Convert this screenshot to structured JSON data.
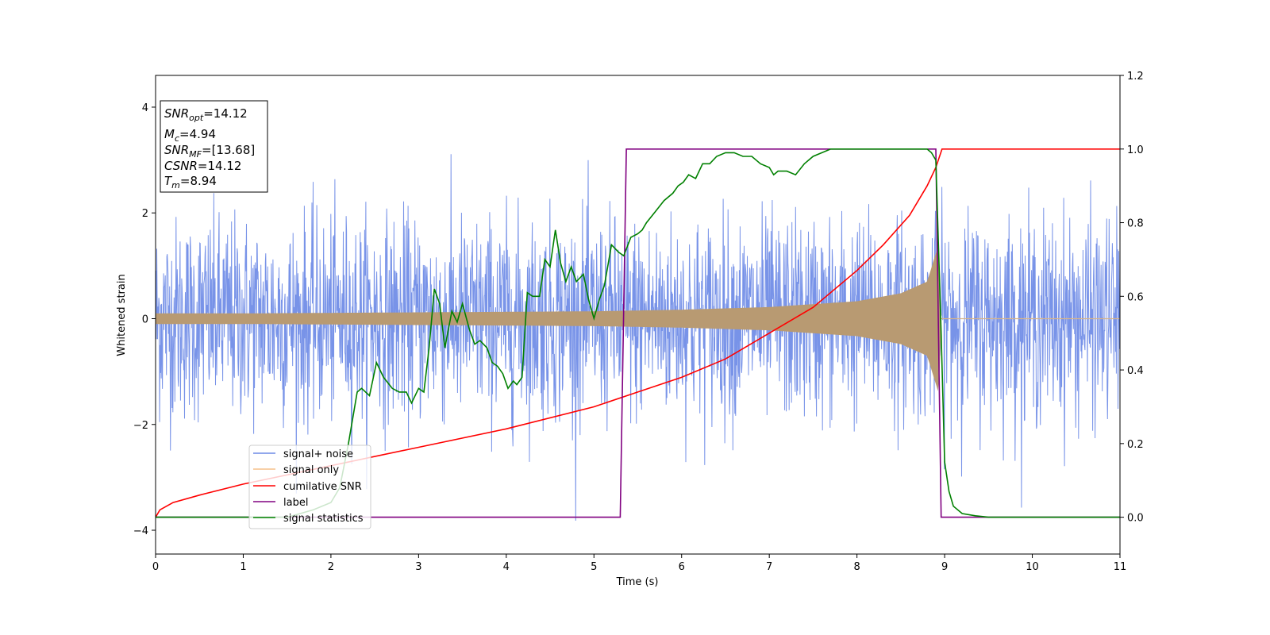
{
  "chart_data": {
    "type": "line",
    "title": "",
    "xlabel": "Time (s)",
    "ylabel": "Whitened strain",
    "xlim": [
      0,
      11
    ],
    "ylim": [
      -4.45,
      4.6
    ],
    "y2lim": [
      -0.1,
      1.2
    ],
    "x_ticks": [
      "0",
      "1",
      "2",
      "3",
      "4",
      "5",
      "6",
      "7",
      "8",
      "9",
      "10",
      "11"
    ],
    "y_ticks": [
      "−4",
      "−2",
      "0",
      "2",
      "4"
    ],
    "y2_ticks": [
      "0.0",
      "0.2",
      "0.4",
      "0.6",
      "0.8",
      "1.0",
      "1.2"
    ],
    "legend_placement": "lower-left",
    "grid": false,
    "annotation": {
      "snr_opt": "=14.12",
      "mc": "=4.94",
      "snr_mf": "=[13.68]",
      "csnr": "=14.12",
      "tm": "=8.94"
    },
    "series": [
      {
        "name": "signal+ noise",
        "axis": "left",
        "color": "#6d8ae6",
        "description_values": {
          "typical_amplitude_sigma": 1.0,
          "max": 4.18,
          "min": -4.07
        }
      },
      {
        "name": "signal only",
        "axis": "left",
        "color": "#f5c08a",
        "envelope": {
          "x": [
            0,
            1,
            2,
            3,
            4,
            5,
            6,
            7,
            8,
            8.5,
            8.8,
            8.94,
            8.95,
            11
          ],
          "amplitude": [
            0.1,
            0.1,
            0.11,
            0.12,
            0.13,
            0.14,
            0.17,
            0.22,
            0.33,
            0.48,
            0.7,
            1.45,
            0.0,
            0.0
          ]
        }
      },
      {
        "name": "cumilative SNR",
        "axis": "right",
        "color": "#ff0000",
        "x": [
          0,
          0.05,
          0.2,
          0.5,
          1,
          2,
          3,
          4,
          5,
          5.5,
          6,
          6.5,
          7,
          7.5,
          8,
          8.3,
          8.6,
          8.8,
          8.9,
          8.97,
          11
        ],
        "values": [
          0.0,
          0.02,
          0.04,
          0.06,
          0.09,
          0.14,
          0.19,
          0.24,
          0.3,
          0.34,
          0.38,
          0.43,
          0.5,
          0.57,
          0.67,
          0.74,
          0.82,
          0.9,
          0.95,
          1.0,
          1.0
        ]
      },
      {
        "name": "label",
        "axis": "right",
        "color": "#800080",
        "x": [
          0,
          5.3,
          5.37,
          8.9,
          8.96,
          11
        ],
        "values": [
          0.0,
          0.0,
          1.0,
          1.0,
          0.0,
          0.0
        ]
      },
      {
        "name": "signal statistics",
        "axis": "right",
        "color": "#008000",
        "x": [
          0,
          0.5,
          1.0,
          1.5,
          1.8,
          2.0,
          2.1,
          2.2,
          2.3,
          2.35,
          2.44,
          2.52,
          2.6,
          2.7,
          2.78,
          2.86,
          2.92,
          3.0,
          3.06,
          3.12,
          3.18,
          3.24,
          3.3,
          3.38,
          3.44,
          3.5,
          3.58,
          3.64,
          3.7,
          3.78,
          3.84,
          3.9,
          3.96,
          4.02,
          4.08,
          4.12,
          4.18,
          4.24,
          4.3,
          4.38,
          4.44,
          4.5,
          4.56,
          4.62,
          4.68,
          4.74,
          4.8,
          4.88,
          4.94,
          5.0,
          5.06,
          5.12,
          5.2,
          5.28,
          5.34,
          5.42,
          5.5,
          5.55,
          5.6,
          5.7,
          5.8,
          5.9,
          5.96,
          6.02,
          6.08,
          6.16,
          6.24,
          6.32,
          6.4,
          6.5,
          6.6,
          6.7,
          6.8,
          6.9,
          7.0,
          7.05,
          7.1,
          7.2,
          7.3,
          7.4,
          7.5,
          7.7,
          7.9,
          8.1,
          8.3,
          8.5,
          8.7,
          8.8,
          8.85,
          8.9,
          8.96,
          9.0,
          9.05,
          9.1,
          9.2,
          9.35,
          9.5,
          10.0,
          11.0
        ],
        "values": [
          0.0,
          0.0,
          0.0,
          0.0,
          0.02,
          0.04,
          0.08,
          0.2,
          0.34,
          0.35,
          0.33,
          0.42,
          0.38,
          0.35,
          0.34,
          0.34,
          0.31,
          0.35,
          0.34,
          0.46,
          0.62,
          0.58,
          0.46,
          0.56,
          0.53,
          0.58,
          0.51,
          0.47,
          0.48,
          0.46,
          0.42,
          0.41,
          0.39,
          0.35,
          0.37,
          0.36,
          0.38,
          0.61,
          0.6,
          0.6,
          0.7,
          0.68,
          0.78,
          0.69,
          0.64,
          0.68,
          0.64,
          0.66,
          0.59,
          0.54,
          0.59,
          0.63,
          0.74,
          0.72,
          0.71,
          0.76,
          0.77,
          0.78,
          0.8,
          0.83,
          0.86,
          0.88,
          0.9,
          0.91,
          0.93,
          0.92,
          0.96,
          0.96,
          0.98,
          0.99,
          0.99,
          0.98,
          0.98,
          0.96,
          0.95,
          0.93,
          0.94,
          0.94,
          0.93,
          0.96,
          0.98,
          1.0,
          1.0,
          1.0,
          1.0,
          1.0,
          1.0,
          1.0,
          0.99,
          0.97,
          0.5,
          0.15,
          0.07,
          0.03,
          0.01,
          0.004,
          0.0,
          0.0,
          0.0
        ]
      }
    ]
  }
}
